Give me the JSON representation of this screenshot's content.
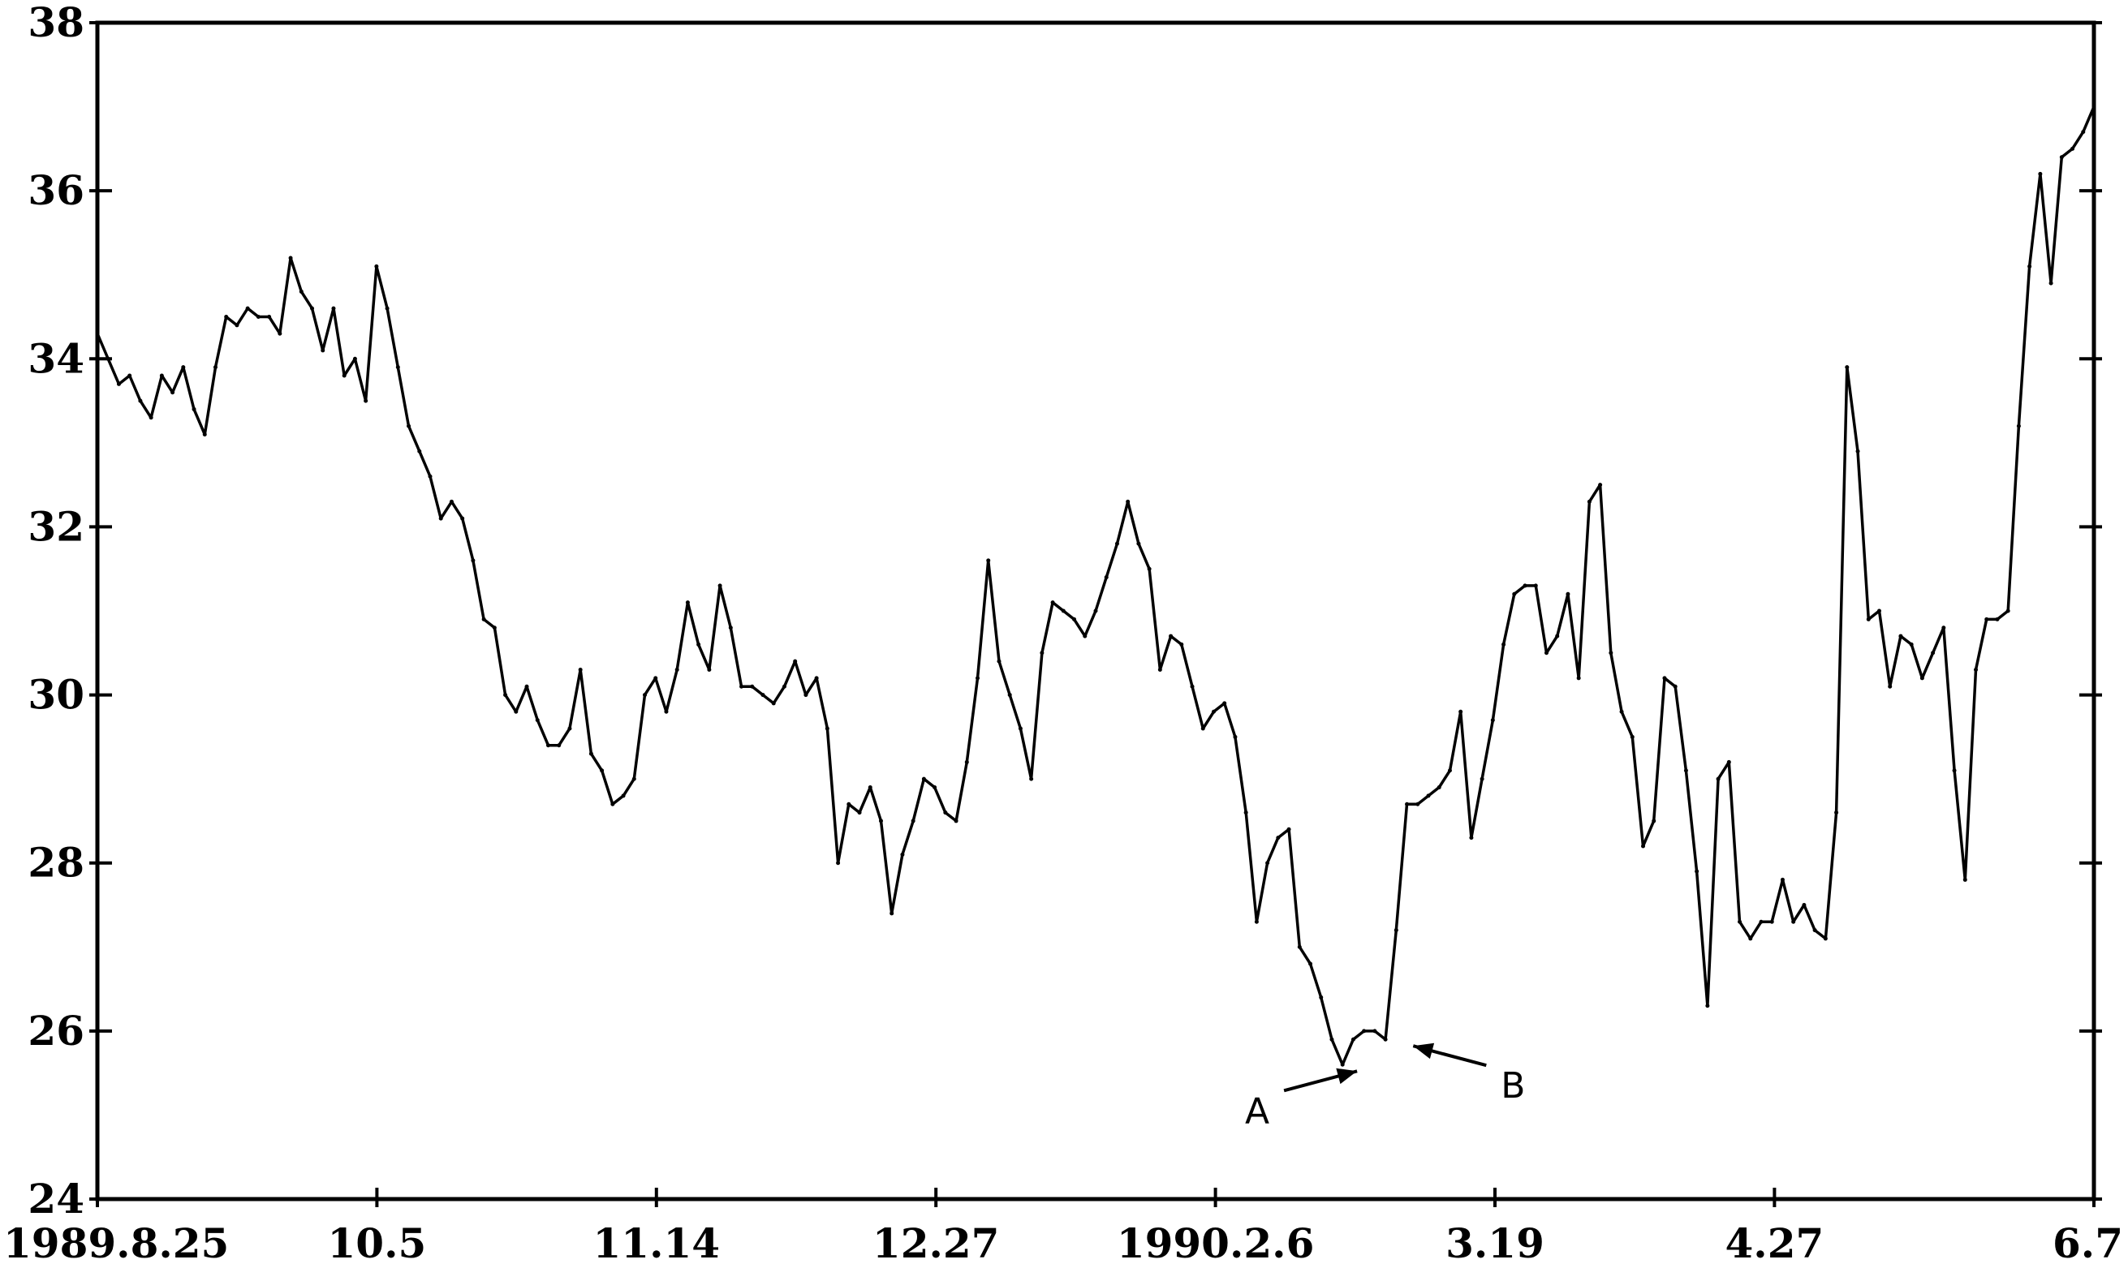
{
  "chart_data": {
    "type": "line",
    "title": "",
    "xlabel": "",
    "ylabel": "",
    "ylim": [
      24,
      38
    ],
    "yticks": [
      24,
      26,
      28,
      30,
      32,
      34,
      36,
      38
    ],
    "ytick_labels": [
      "24",
      "26",
      "28",
      "30",
      "32",
      "34",
      "36",
      "38"
    ],
    "xtick_labels": [
      "1989.8.25",
      "10.5",
      "11.14",
      "12.27",
      "1990.2.6",
      "3.19",
      "4.27",
      "6.7"
    ],
    "grid": false,
    "x_index_range": [
      0,
      200
    ],
    "xtick_index": [
      0,
      28,
      56,
      84,
      112,
      140,
      168,
      200
    ],
    "series": [
      {
        "values": [
          34.3,
          34.0,
          33.7,
          33.8,
          33.5,
          33.3,
          33.8,
          33.6,
          33.9,
          33.4,
          33.1,
          33.9,
          34.5,
          34.4,
          34.6,
          34.5,
          34.5,
          34.3,
          35.2,
          34.8,
          34.6,
          34.1,
          34.6,
          33.8,
          34.0,
          33.5,
          35.1,
          34.6,
          33.9,
          33.2,
          32.9,
          32.6,
          32.1,
          32.3,
          32.1,
          31.6,
          30.9,
          30.8,
          30.0,
          29.8,
          30.1,
          29.7,
          29.4,
          29.4,
          29.6,
          30.3,
          29.3,
          29.1,
          28.7,
          28.8,
          29.0,
          30.0,
          30.2,
          29.8,
          30.3,
          31.1,
          30.6,
          30.3,
          31.3,
          30.8,
          30.1,
          30.1,
          30.0,
          29.9,
          30.1,
          30.4,
          30.0,
          30.2,
          29.6,
          28.0,
          28.7,
          28.6,
          28.9,
          28.5,
          27.4,
          28.1,
          28.5,
          29.0,
          28.9,
          28.6,
          28.5,
          29.2,
          30.2,
          31.6,
          30.4,
          30.0,
          29.6,
          29.0,
          30.5,
          31.1,
          31.0,
          30.9,
          30.7,
          31.0,
          31.4,
          31.8,
          32.3,
          31.8,
          31.5,
          30.3,
          30.7,
          30.6,
          30.1,
          29.6,
          29.8,
          29.9,
          29.5,
          28.6,
          27.3,
          28.0,
          28.3,
          28.4,
          27.0,
          26.8,
          26.4,
          25.9,
          25.6,
          25.9,
          26.0,
          26.0,
          25.9,
          27.2,
          28.7,
          28.7,
          28.8,
          28.9,
          29.1,
          29.8,
          28.3,
          29.0,
          29.7,
          30.6,
          31.2,
          31.3,
          31.3,
          30.5,
          30.7,
          31.2,
          30.2,
          32.3,
          32.5,
          30.5,
          29.8,
          29.5,
          28.2,
          28.5,
          30.2,
          30.1,
          29.1,
          27.9,
          26.3,
          29.0,
          29.2,
          27.3,
          27.1,
          27.3,
          27.3,
          27.8,
          27.3,
          27.5,
          27.2,
          27.1,
          28.6,
          33.9,
          32.9,
          30.9,
          31.0,
          30.1,
          30.7,
          30.6,
          30.2,
          30.5,
          30.8,
          29.1,
          27.8,
          30.3,
          30.9,
          30.9,
          31.0,
          33.2,
          35.1,
          36.2,
          34.9,
          36.4,
          36.5,
          36.7,
          37.0
        ]
      }
    ],
    "annotations": [
      {
        "text": "A",
        "x": 127,
        "y": 25.6
      },
      {
        "text": "B",
        "x": 131,
        "y": 25.9
      }
    ],
    "line_color": "#000000"
  }
}
